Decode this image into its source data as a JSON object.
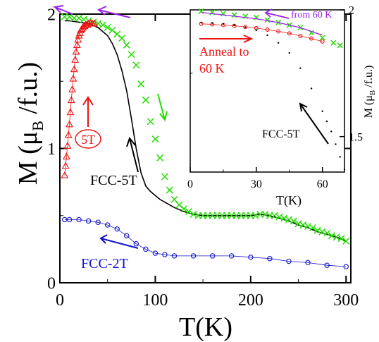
{
  "colors": {
    "axis": "#000000",
    "red": "#ee1111",
    "green": "#22dd00",
    "blue": "#1111cc",
    "purple": "#9922ee",
    "black": "#000000"
  },
  "main": {
    "ylabel_pre": "M (",
    "ylabel_mu": "μ",
    "ylabel_sub": "B",
    "ylabel_post": " /f.u.)",
    "xlabel": "T(K)",
    "annot_5T": "5T",
    "annot_fcc5": "FCC-5T",
    "annot_fcc2": "FCC-2T"
  },
  "inset": {
    "ylabel_pre": "M (",
    "ylabel_mu": "μ",
    "ylabel_sub": "B",
    "ylabel_post": " /f.u.)",
    "xlabel": "T(K)",
    "annot_from60": "from 60 K",
    "annot_anneal1": "Anneal to",
    "annot_anneal2": "60 K",
    "annot_fcc5": "FCC-5T"
  },
  "chart_data": [
    {
      "type": "line",
      "xlabel": "T(K)",
      "ylabel": "M (μB /f.u.)",
      "xlim": [
        0,
        305
      ],
      "ylim": [
        0,
        2.0
      ],
      "x_ticks": [
        0,
        100,
        200,
        300
      ],
      "y_ticks": [
        0,
        1,
        2
      ],
      "annotations": [
        "5T",
        "FCC-5T",
        "FCC-2T"
      ],
      "series": [
        {
          "marker": "line",
          "color": "#000000",
          "x": [
            5,
            10,
            20,
            30,
            40,
            50,
            55,
            60,
            65,
            70,
            75,
            80,
            85,
            90,
            95,
            100,
            105,
            110,
            120,
            130,
            140,
            150,
            160,
            170,
            180,
            190,
            200,
            210,
            220,
            230,
            240,
            250,
            260,
            270,
            280,
            290,
            300
          ],
          "y": [
            1.95,
            1.95,
            1.94,
            1.93,
            1.9,
            1.84,
            1.78,
            1.7,
            1.58,
            1.43,
            1.22,
            1.0,
            0.82,
            0.72,
            0.68,
            0.65,
            0.62,
            0.6,
            0.56,
            0.53,
            0.51,
            0.5,
            0.5,
            0.5,
            0.5,
            0.5,
            0.5,
            0.51,
            0.5,
            0.48,
            0.46,
            0.43,
            0.41,
            0.38,
            0.36,
            0.34,
            0.31
          ]
        },
        {
          "marker": "x",
          "color": "#22dd00",
          "x": [
            5,
            10,
            15,
            20,
            25,
            30,
            35,
            40,
            45,
            50,
            55,
            60,
            65,
            70,
            75,
            80,
            85,
            90,
            95,
            100,
            105,
            110,
            115,
            120,
            125,
            130,
            135,
            140,
            145,
            150,
            155,
            160,
            165,
            170,
            175,
            180,
            185,
            190,
            195,
            200,
            205,
            210,
            215,
            220,
            225,
            230,
            235,
            240,
            245,
            250,
            255,
            260,
            265,
            270,
            275,
            280,
            285,
            290,
            295,
            300
          ],
          "y": [
            1.98,
            1.98,
            1.97,
            1.97,
            1.96,
            1.95,
            1.94,
            1.93,
            1.92,
            1.9,
            1.88,
            1.85,
            1.82,
            1.77,
            1.7,
            1.62,
            1.48,
            1.36,
            1.2,
            1.07,
            0.93,
            0.79,
            0.69,
            0.62,
            0.58,
            0.55,
            0.53,
            0.51,
            0.5,
            0.5,
            0.5,
            0.5,
            0.5,
            0.5,
            0.5,
            0.5,
            0.5,
            0.5,
            0.5,
            0.5,
            0.5,
            0.51,
            0.51,
            0.5,
            0.5,
            0.49,
            0.48,
            0.47,
            0.46,
            0.44,
            0.43,
            0.42,
            0.41,
            0.39,
            0.38,
            0.37,
            0.35,
            0.34,
            0.33,
            0.31
          ]
        },
        {
          "marker": "triangle",
          "color": "#ee1111",
          "x": [
            5,
            6,
            7,
            8,
            9,
            10,
            11,
            12,
            13,
            14,
            15,
            16,
            17,
            18,
            19,
            20,
            21,
            22,
            23,
            24,
            25,
            26,
            27,
            28,
            29,
            30,
            32,
            34,
            36
          ],
          "y": [
            0.8,
            0.87,
            0.94,
            1.02,
            1.1,
            1.18,
            1.27,
            1.36,
            1.44,
            1.52,
            1.59,
            1.66,
            1.72,
            1.77,
            1.81,
            1.84,
            1.86,
            1.88,
            1.89,
            1.9,
            1.91,
            1.91,
            1.92,
            1.92,
            1.92,
            1.93,
            1.93,
            1.93,
            1.93
          ]
        },
        {
          "marker": "circle",
          "color": "#1111cc",
          "x": [
            5,
            10,
            20,
            30,
            40,
            50,
            60,
            70,
            80,
            90,
            100,
            110,
            120,
            140,
            160,
            180,
            200,
            220,
            240,
            260,
            280,
            300
          ],
          "y": [
            0.47,
            0.47,
            0.47,
            0.46,
            0.45,
            0.43,
            0.4,
            0.35,
            0.29,
            0.25,
            0.22,
            0.21,
            0.2,
            0.2,
            0.2,
            0.2,
            0.19,
            0.18,
            0.16,
            0.15,
            0.13,
            0.12
          ]
        }
      ]
    },
    {
      "type": "line",
      "xlabel": "T(K)",
      "ylabel": "M (μB /f.u.)",
      "xlim": [
        0,
        70
      ],
      "ylim": [
        1.36,
        2.0
      ],
      "x_ticks": [
        0,
        30,
        60
      ],
      "y_ticks": [
        1.5,
        2.0
      ],
      "annotations": [
        "from 60 K",
        "Anneal to 60 K",
        "FCC-5T"
      ],
      "series": [
        {
          "marker": "x",
          "color": "#22dd00",
          "x": [
            5,
            10,
            15,
            20,
            25,
            30,
            35,
            40,
            45,
            50,
            55,
            60,
            65,
            68
          ],
          "y": [
            1.995,
            1.99,
            1.985,
            1.98,
            1.975,
            1.97,
            1.96,
            1.95,
            1.94,
            1.93,
            1.91,
            1.89,
            1.87,
            1.86
          ]
        },
        {
          "marker": "line",
          "color": "#9922ee",
          "x": [
            5,
            10,
            20,
            30,
            40,
            50,
            60
          ],
          "y": [
            1.99,
            1.985,
            1.975,
            1.965,
            1.95,
            1.93,
            1.9
          ]
        },
        {
          "marker": "circle",
          "color": "#ee1111",
          "x": [
            5,
            10,
            15,
            20,
            25,
            30,
            35,
            40,
            45,
            50,
            55,
            60
          ],
          "y": [
            1.945,
            1.943,
            1.94,
            1.937,
            1.933,
            1.928,
            1.922,
            1.915,
            1.907,
            1.897,
            1.887,
            1.875
          ]
        },
        {
          "marker": "dot",
          "color": "#000000",
          "x": [
            5,
            10,
            15,
            20,
            25,
            30,
            35,
            40,
            45,
            50,
            55,
            60,
            62,
            64,
            66,
            68,
            70
          ],
          "y": [
            1.95,
            1.948,
            1.945,
            1.94,
            1.932,
            1.92,
            1.9,
            1.87,
            1.83,
            1.77,
            1.69,
            1.6,
            1.56,
            1.52,
            1.47,
            1.42,
            1.37
          ]
        }
      ]
    }
  ]
}
